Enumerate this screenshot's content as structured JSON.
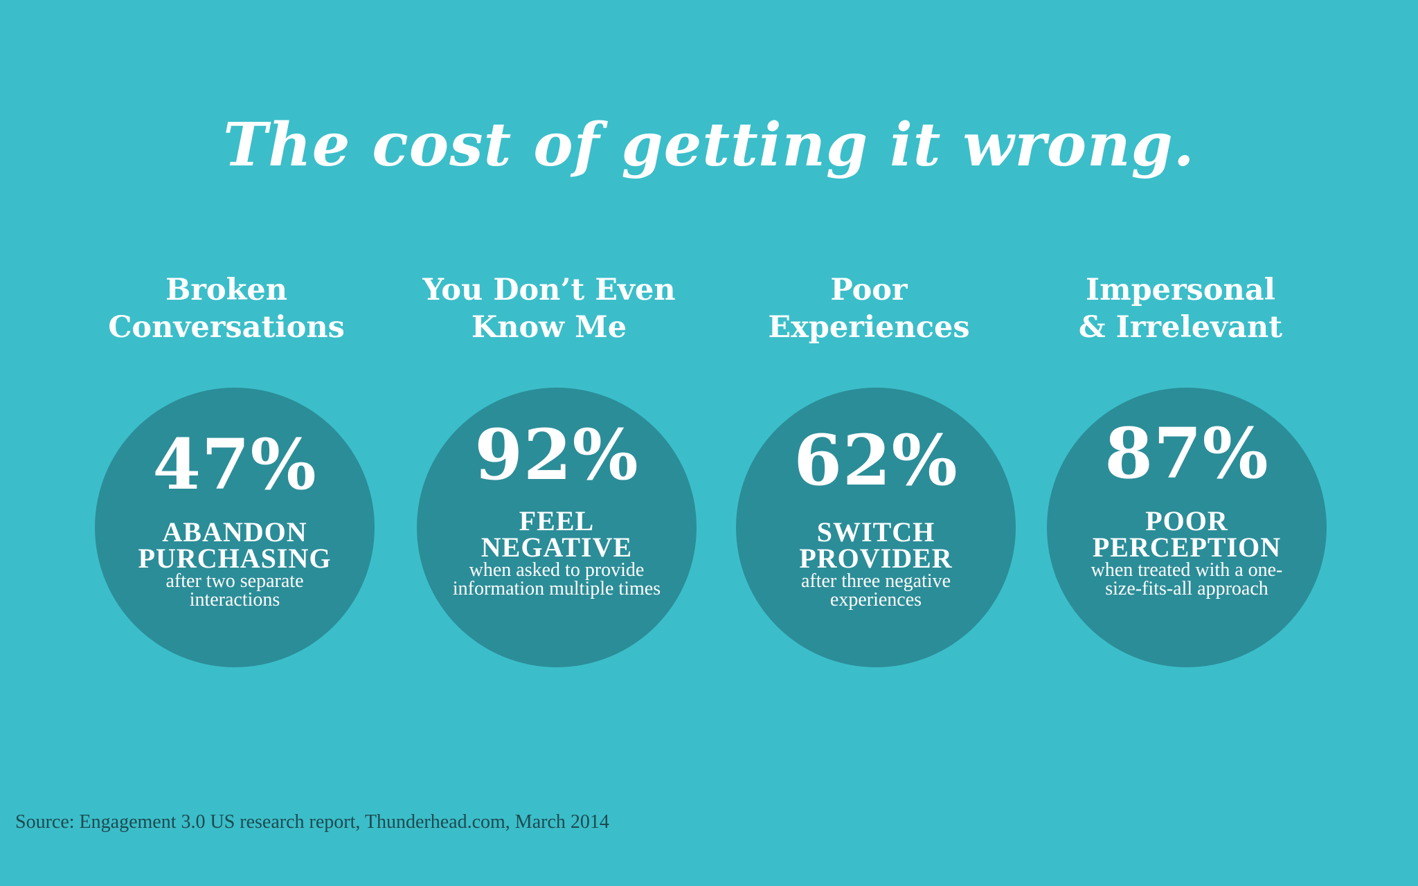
{
  "title": "The cost of getting it wrong.",
  "colors": {
    "background": "#3bbec9",
    "circle": "#2b8d98",
    "text": "#ffffff",
    "source_text": "#1d4a51"
  },
  "stats": [
    {
      "heading_line1": "Broken",
      "heading_line2": "Conversations",
      "value": "47%",
      "label_line1": "ABANDON",
      "label_line2": "PURCHASING",
      "description": "after two separate interactions"
    },
    {
      "heading_line1": "You Don’t Even",
      "heading_line2": "Know Me",
      "value": "92%",
      "label_line1": "FEEL",
      "label_line2": "NEGATIVE",
      "description": "when asked to provide information multiple times"
    },
    {
      "heading_line1": "Poor",
      "heading_line2": "Experiences",
      "value": "62%",
      "label_line1": "SWITCH",
      "label_line2": "PROVIDER",
      "description": "after three negative experiences"
    },
    {
      "heading_line1": "Impersonal",
      "heading_line2": "& Irrelevant",
      "value": "87%",
      "label_line1": "POOR",
      "label_line2": "PERCEPTION",
      "description": "when treated with a one-size-fits-all approach"
    }
  ],
  "source": "Source: Engagement 3.0 US research report, Thunderhead.com, March 2014"
}
